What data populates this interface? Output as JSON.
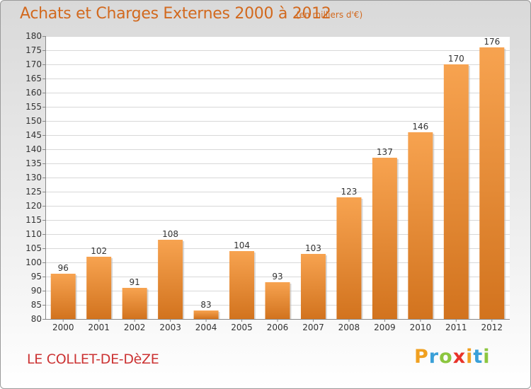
{
  "title": "Achats et Charges Externes 2000 à 2012",
  "subtitle": "(en milliers d'€)",
  "place": "LE COLLET-DE-DèZE",
  "logo": {
    "letters": [
      "P",
      "r",
      "o",
      "x",
      "i",
      "t",
      "i"
    ],
    "colors": [
      "#f0a020",
      "#3aa0d8",
      "#8cc63f",
      "#e8332a",
      "#f0a020",
      "#3aa0d8",
      "#8cc63f"
    ]
  },
  "chart_data": {
    "type": "bar",
    "categories": [
      "2000",
      "2001",
      "2002",
      "2003",
      "2004",
      "2005",
      "2006",
      "2007",
      "2008",
      "2009",
      "2010",
      "2011",
      "2012"
    ],
    "values": [
      96,
      102,
      91,
      108,
      83,
      104,
      93,
      103,
      123,
      137,
      146,
      170,
      176
    ],
    "ylim": [
      80,
      180
    ],
    "yticks": [
      80,
      85,
      90,
      95,
      100,
      105,
      110,
      115,
      120,
      125,
      130,
      135,
      140,
      145,
      150,
      155,
      160,
      165,
      170,
      175,
      180
    ],
    "grid": true,
    "bar_color_top": "#f7a350",
    "bar_color_bottom": "#d2731e"
  }
}
